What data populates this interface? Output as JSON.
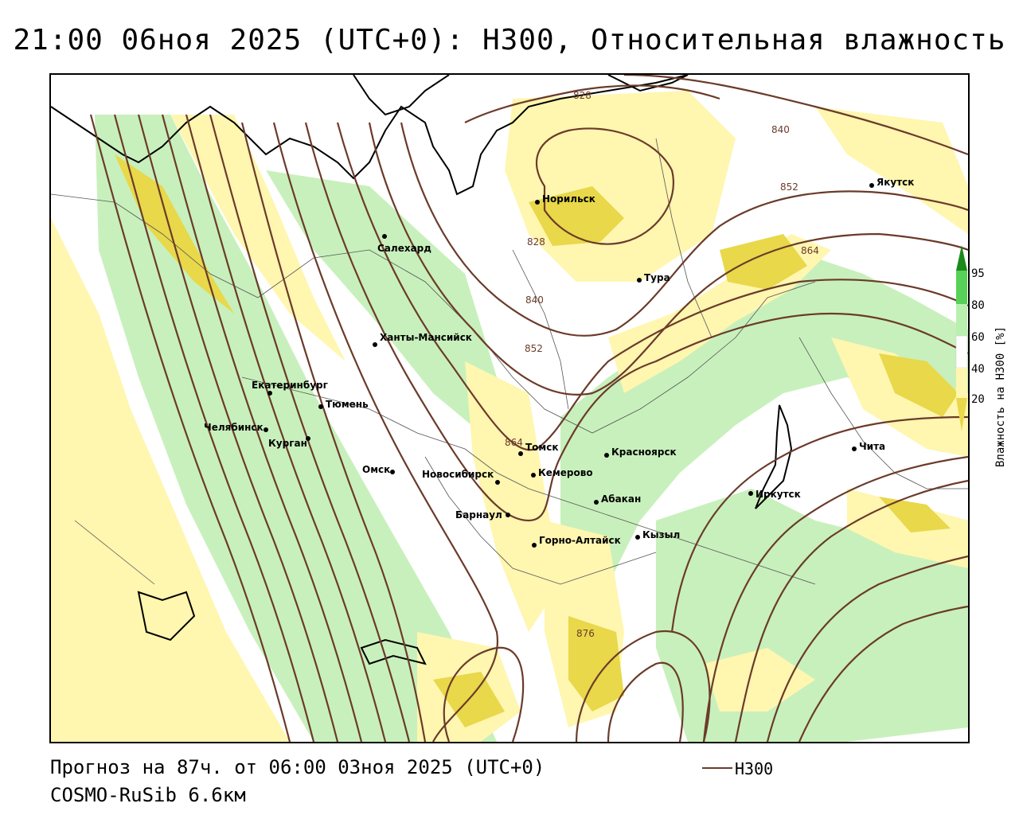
{
  "title": "21:00 06ноя 2025 (UTC+0): H300, Относительная влажность",
  "footer": {
    "forecast": "Прогноз на 87ч. от 06:00 03ноя 2025 (UTC+0)",
    "model": "COSMO-RuSib 6.6км"
  },
  "legend": {
    "line_label": "H300",
    "line_color": "#6b3b2a"
  },
  "colorbar": {
    "title": "Влажность на H300 [%]",
    "ticks": [
      "95",
      "80",
      "60",
      "40",
      "20"
    ],
    "colors": [
      "#1a8a1a",
      "#57d157",
      "#b9f0b0",
      "#ffffff",
      "#fff6b0",
      "#e8d84a"
    ]
  },
  "cities": [
    {
      "name": "Норильск"
    },
    {
      "name": "Салехард"
    },
    {
      "name": "Тура"
    },
    {
      "name": "Якутск"
    },
    {
      "name": "Ханты-Мансийск"
    },
    {
      "name": "Екатеринбург"
    },
    {
      "name": "Тюмень"
    },
    {
      "name": "Челябинск"
    },
    {
      "name": "Курган"
    },
    {
      "name": "Омск"
    },
    {
      "name": "Новосибирск"
    },
    {
      "name": "Томск"
    },
    {
      "name": "Кемерово"
    },
    {
      "name": "Красноярск"
    },
    {
      "name": "Барнаул"
    },
    {
      "name": "Абакан"
    },
    {
      "name": "Горно-Алтайск"
    },
    {
      "name": "Кызыл"
    },
    {
      "name": "Иркутск"
    },
    {
      "name": "Чита"
    }
  ],
  "isolines": [
    "828",
    "840",
    "852",
    "864",
    "828",
    "840",
    "852",
    "864",
    "876"
  ]
}
